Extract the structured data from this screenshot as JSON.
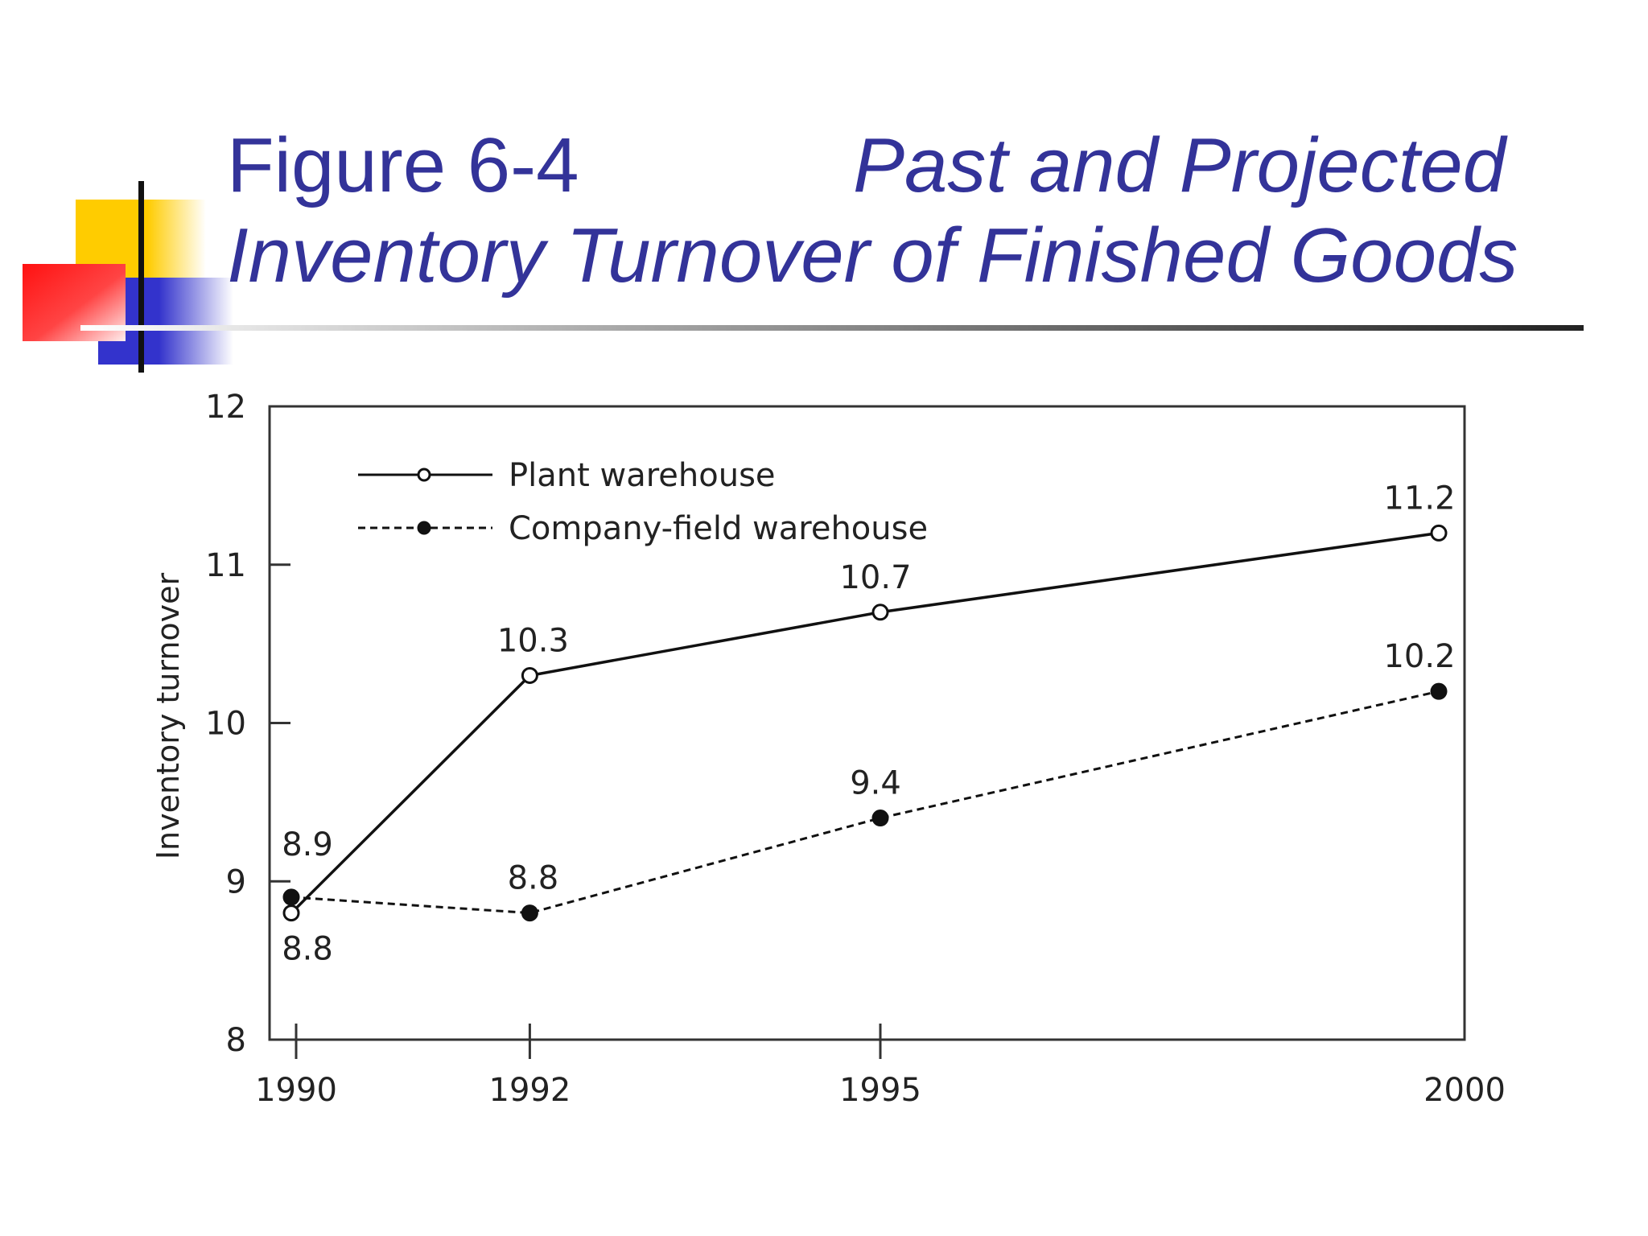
{
  "title": {
    "label": "Figure 6-4",
    "line1": "Past and Projected",
    "line2": "Inventory Turnover of Finished Goods"
  },
  "colors": {
    "title": "#333399",
    "rule": "#333333",
    "yellow": "#ffcc00",
    "red": "#ff2222",
    "blue": "#3333cc"
  },
  "chart_data": {
    "type": "line",
    "ylabel": "Inventory turnover",
    "xlabel": "",
    "categories": [
      "1990",
      "1992",
      "1995",
      "2000"
    ],
    "x": [
      1990,
      1992,
      1995,
      2000
    ],
    "ylim": [
      8,
      12
    ],
    "yticks": [
      "8",
      "9",
      "10",
      "11",
      "12"
    ],
    "grid": false,
    "legend": "top-left",
    "series": [
      {
        "name": "Plant warehouse",
        "style": "solid",
        "marker": "open-circle",
        "values": [
          8.8,
          10.3,
          10.7,
          11.2
        ],
        "labels": [
          "8.8",
          "10.3",
          "10.7",
          "11.2"
        ]
      },
      {
        "name": "Company-field warehouse",
        "style": "dashed",
        "marker": "filled-circle",
        "values": [
          8.9,
          8.8,
          9.4,
          10.2
        ],
        "labels": [
          "8.9",
          "8.8",
          "9.4",
          "10.2"
        ]
      }
    ]
  }
}
